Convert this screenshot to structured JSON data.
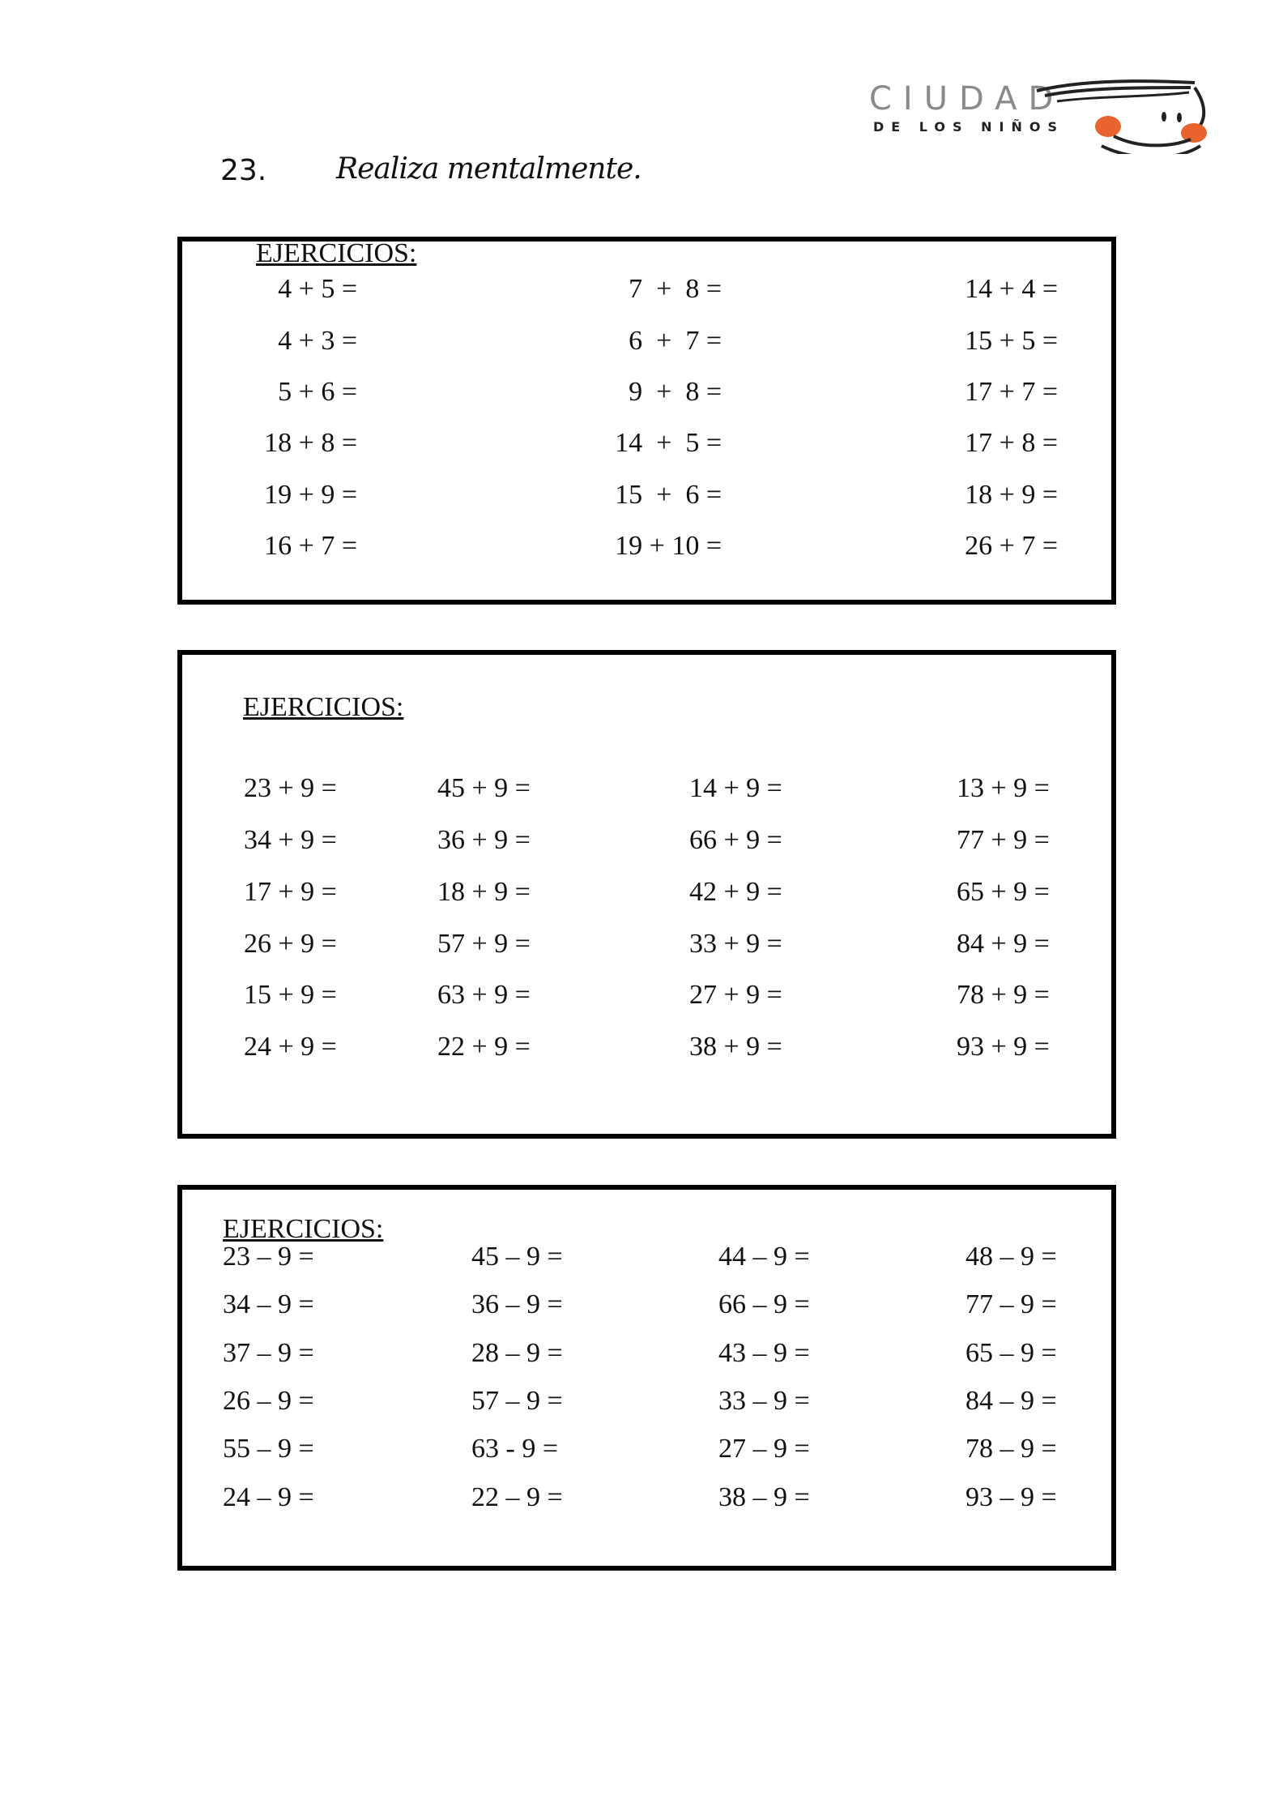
{
  "logo": {
    "text_main": "CIUDAD",
    "text_sub": "DE LOS NIÑOS",
    "accent": "#e8642c"
  },
  "heading": {
    "number": "23.",
    "title": "Realiza mentalmente."
  },
  "boxes": [
    {
      "title": "EJERCICIOS:",
      "columns": [
        [
          "4 + 5 =",
          "4 + 3 =",
          "5 + 6 =",
          "18 + 8 =",
          "19 + 9 =",
          "16 + 7 ="
        ],
        [
          "7  +  8 =",
          "6  +  7 =",
          "9  +  8 =",
          "14  +  5 =",
          "15  +  6 =",
          "19 + 10 ="
        ],
        [
          "14 + 4 =",
          "15 + 5 =",
          "17 + 7 =",
          "17 + 8 =",
          "18 + 9 =",
          "26 + 7 ="
        ]
      ]
    },
    {
      "title": "EJERCICIOS:",
      "columns": [
        [
          "23 + 9 =",
          "34 + 9 =",
          "17 + 9 =",
          "26 + 9 =",
          "15 + 9 =",
          "24 + 9 ="
        ],
        [
          "45 + 9 =",
          "36 + 9 =",
          "18 + 9 =",
          "57 + 9 =",
          "63 + 9 =",
          "22 + 9 ="
        ],
        [
          "14 + 9 =",
          "66 + 9 =",
          "42 + 9 =",
          "33 + 9 =",
          "27 + 9 =",
          "38 + 9 ="
        ],
        [
          "13 + 9 =",
          "77 + 9 =",
          "65 + 9 =",
          "84 + 9 =",
          "78 + 9 =",
          "93 + 9 ="
        ]
      ]
    },
    {
      "title": "EJERCICIOS:",
      "columns": [
        [
          "23 – 9 =",
          "34 – 9 =",
          "37 – 9 =",
          "26 – 9 =",
          "55 – 9 =",
          "24 – 9 ="
        ],
        [
          "45 – 9 =",
          "36 – 9 =",
          "28 – 9 =",
          "57 – 9 =",
          "63 - 9 =",
          "22 – 9 ="
        ],
        [
          "44 – 9 =",
          "66 – 9 =",
          "43 – 9 =",
          "33 – 9 =",
          "27 – 9 =",
          "38 – 9 ="
        ],
        [
          "48 – 9 =",
          "77 – 9 =",
          "65 – 9 =",
          "84 – 9 =",
          "78 – 9 =",
          "93 – 9 ="
        ]
      ]
    }
  ]
}
